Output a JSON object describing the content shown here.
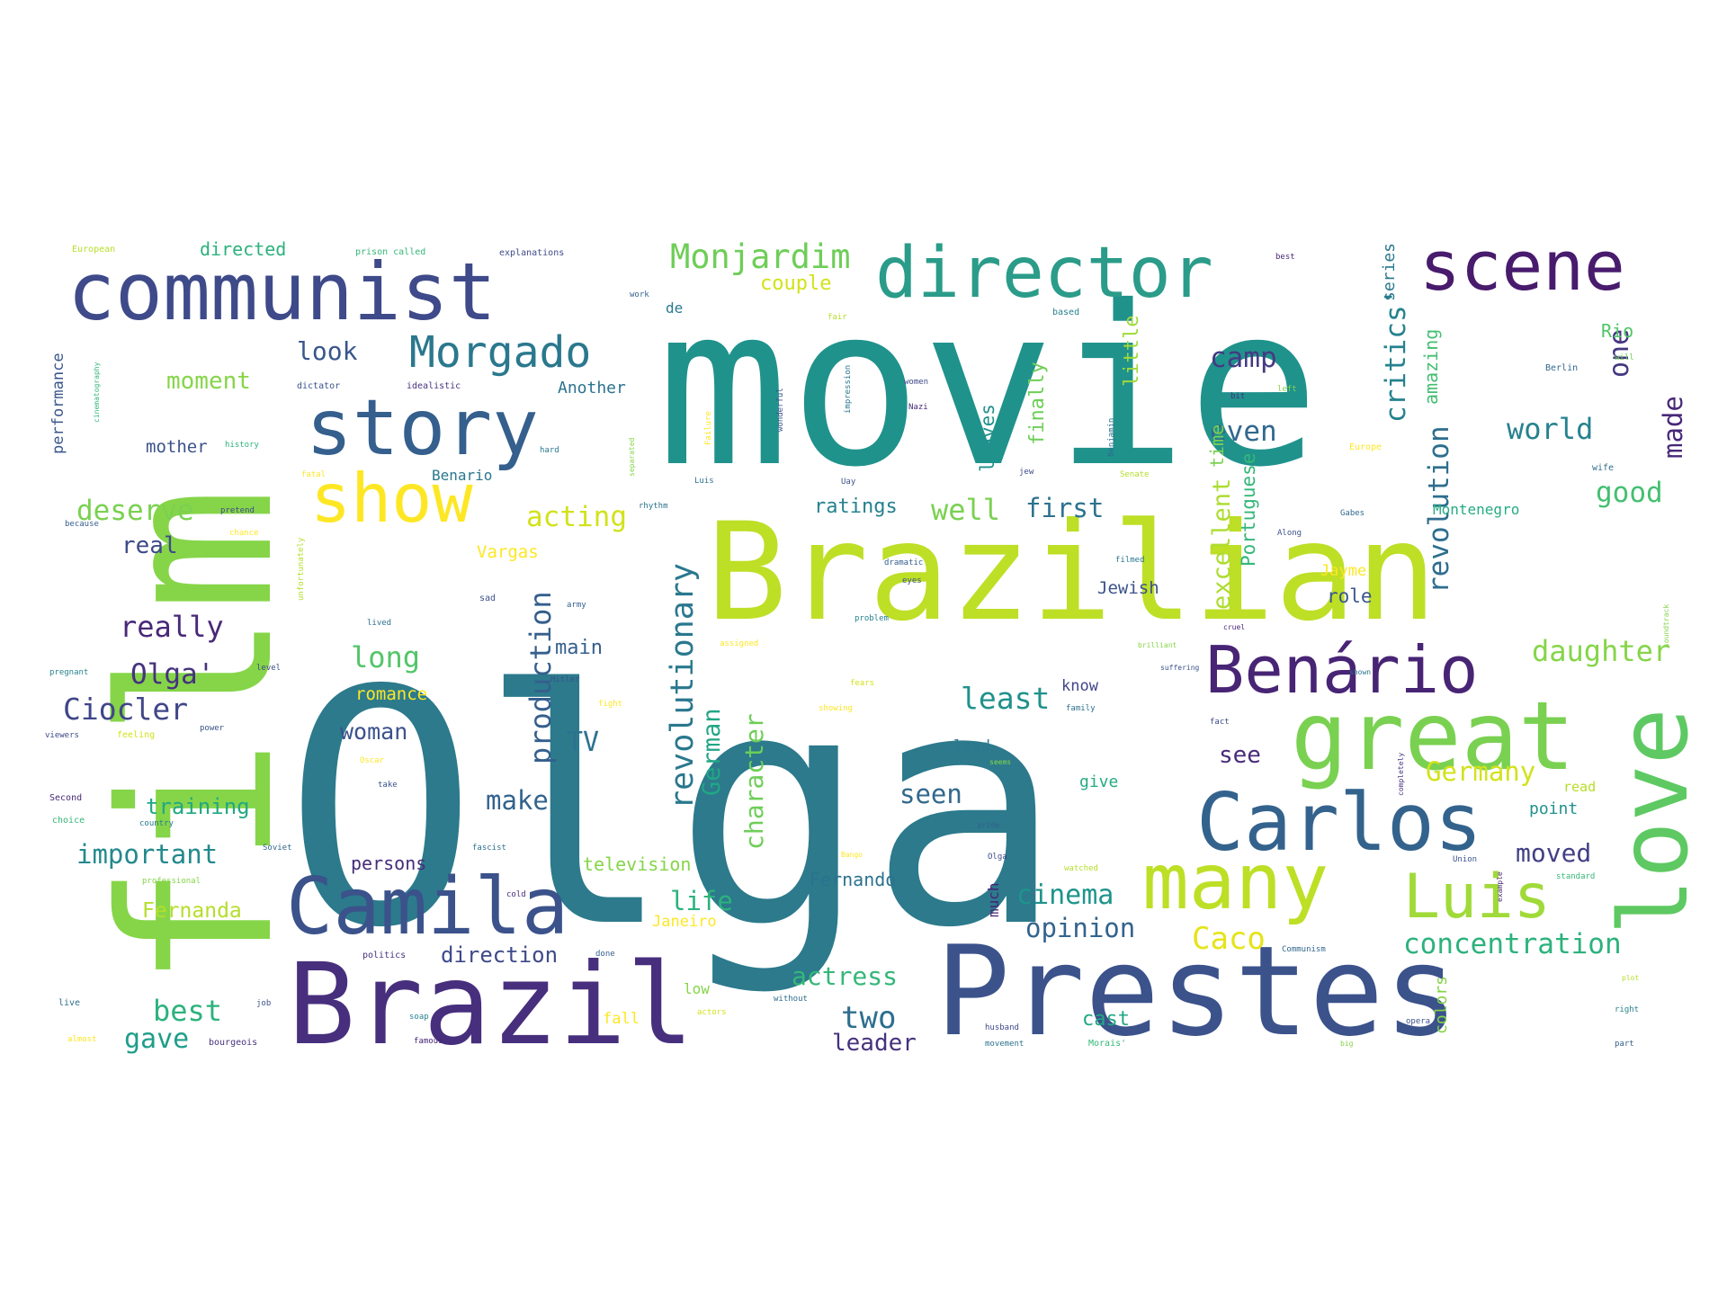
{
  "word_cloud": {
    "background": "#ffffff",
    "palette": [
      "#440154",
      "#482878",
      "#3e4989",
      "#31688e",
      "#26828e",
      "#1f9e89",
      "#35b779",
      "#6ece58",
      "#b5de2b",
      "#fde725"
    ],
    "words": [
      {
        "text": "Olga",
        "color": "#2c7a8c"
      },
      {
        "text": "movie",
        "color": "#20928c"
      },
      {
        "text": "film",
        "color": "#86d549"
      },
      {
        "text": "Brazilian",
        "color": "#bddf26"
      },
      {
        "text": "Prestes",
        "color": "#3b528b"
      },
      {
        "text": "Brazil",
        "color": "#472f7d"
      },
      {
        "text": "communist",
        "color": "#3e4a89"
      },
      {
        "text": "director",
        "color": "#2a9c89"
      },
      {
        "text": "scene",
        "color": "#481b6d"
      },
      {
        "text": "story",
        "color": "#355f8d"
      },
      {
        "text": "great",
        "color": "#7ad151"
      },
      {
        "text": "love",
        "color": "#5ec962"
      },
      {
        "text": "Camila",
        "color": "#3b528b"
      },
      {
        "text": "Carlos",
        "color": "#33638d"
      },
      {
        "text": "many",
        "color": "#bddf26"
      },
      {
        "text": "Benário",
        "color": "#482475"
      },
      {
        "text": "Luis",
        "color": "#a0da39"
      },
      {
        "text": "show",
        "color": "#fde725"
      },
      {
        "text": "Morgado",
        "color": "#2a788e"
      },
      {
        "text": "Monjardim",
        "color": "#6ece58"
      },
      {
        "text": "critics'",
        "color": "#26828e"
      },
      {
        "text": "revolutionary",
        "color": "#2a788e"
      },
      {
        "text": "production",
        "color": "#355f8d"
      },
      {
        "text": "revolution",
        "color": "#2e6e8e"
      },
      {
        "text": "excellent",
        "color": "#addc30"
      },
      {
        "text": "concentration",
        "color": "#2db27d"
      },
      {
        "text": "character",
        "color": "#6ece58"
      },
      {
        "text": "German",
        "color": "#21a685"
      },
      {
        "text": "daughter",
        "color": "#86d549"
      },
      {
        "text": "Germany",
        "color": "#d2e21b"
      },
      {
        "text": "important",
        "color": "#23898e"
      },
      {
        "text": "deserve",
        "color": "#7ad151"
      },
      {
        "text": "acting",
        "color": "#d2e21b"
      },
      {
        "text": "Ciocler",
        "color": "#404688"
      },
      {
        "text": "cinema",
        "color": "#1f948c"
      },
      {
        "text": "opinion",
        "color": "#33638d"
      },
      {
        "text": "actress",
        "color": "#35b779"
      },
      {
        "text": "Caco",
        "color": "#e5e419"
      },
      {
        "text": "least",
        "color": "#21918c"
      },
      {
        "text": "world",
        "color": "#26828e"
      },
      {
        "text": "good",
        "color": "#44bf70"
      },
      {
        "text": "really",
        "color": "#482878"
      },
      {
        "text": "Olga'",
        "color": "#46327e"
      },
      {
        "text": "long",
        "color": "#52c569"
      },
      {
        "text": "camp",
        "color": "#443a83"
      },
      {
        "text": "even",
        "color": "#31688e"
      },
      {
        "text": "made",
        "color": "#482878"
      },
      {
        "text": "one",
        "color": "#453781"
      },
      {
        "text": "look",
        "color": "#39568c"
      },
      {
        "text": "well",
        "color": "#7ad151"
      },
      {
        "text": "first",
        "color": "#2c728e"
      },
      {
        "text": "moment",
        "color": "#86d549"
      },
      {
        "text": "real",
        "color": "#3e4a89"
      },
      {
        "text": "seen",
        "color": "#31688e"
      },
      {
        "text": "make",
        "color": "#33638d"
      },
      {
        "text": "life",
        "color": "#2db27d"
      },
      {
        "text": "moved",
        "color": "#423f85"
      },
      {
        "text": "best",
        "color": "#2db27d"
      },
      {
        "text": "two",
        "color": "#2e6e8e"
      },
      {
        "text": "gave",
        "color": "#1f9e89"
      },
      {
        "text": "see",
        "color": "#472c7a"
      },
      {
        "text": "TV",
        "color": "#2c728e"
      },
      {
        "text": "woman",
        "color": "#3b528b"
      },
      {
        "text": "training",
        "color": "#22a884"
      },
      {
        "text": "leader",
        "color": "#46327e"
      },
      {
        "text": "Fernanda",
        "color": "#b5de2b"
      },
      {
        "text": "direction",
        "color": "#3e4a89"
      },
      {
        "text": "couple",
        "color": "#d2e21b"
      },
      {
        "text": "ratings",
        "color": "#26828e"
      },
      {
        "text": "role",
        "color": "#39568c"
      },
      {
        "text": "main",
        "color": "#355f8d"
      },
      {
        "text": "Jewish",
        "color": "#3b528b"
      },
      {
        "text": "leaves",
        "color": "#21918c"
      },
      {
        "text": "finally",
        "color": "#6ece58"
      },
      {
        "text": "little",
        "color": "#a0da39"
      },
      {
        "text": "time",
        "color": "#7ad151"
      },
      {
        "text": "Portuguese",
        "color": "#35b779"
      },
      {
        "text": "amazing",
        "color": "#44bf70"
      },
      {
        "text": "series",
        "color": "#2a788e"
      },
      {
        "text": "Rio",
        "color": "#52c569"
      },
      {
        "text": "Montenegro",
        "color": "#25ab82"
      },
      {
        "text": "cast",
        "color": "#22a884"
      },
      {
        "text": "Vargas",
        "color": "#fde725"
      },
      {
        "text": "Jayme",
        "color": "#fde725"
      },
      {
        "text": "Fernando",
        "color": "#2c728e"
      },
      {
        "text": "television",
        "color": "#86d549"
      },
      {
        "text": "persons",
        "color": "#472c7a"
      },
      {
        "text": "Another",
        "color": "#2c728e"
      },
      {
        "text": "mother",
        "color": "#3b528b"
      },
      {
        "text": "directed",
        "color": "#2db27d"
      },
      {
        "text": "performance",
        "color": "#39568c"
      },
      {
        "text": "romance",
        "color": "#fde725"
      },
      {
        "text": "Janeiro",
        "color": "#fde725"
      },
      {
        "text": "colors",
        "color": "#86d549"
      },
      {
        "text": "much",
        "color": "#482475"
      },
      {
        "text": "give",
        "color": "#25ab82"
      },
      {
        "text": "know",
        "color": "#404688"
      },
      {
        "text": "lead",
        "color": "#2a788e"
      },
      {
        "text": "fall",
        "color": "#fde725"
      },
      {
        "text": "low",
        "color": "#86d549"
      },
      {
        "text": "point",
        "color": "#21918c"
      },
      {
        "text": "read",
        "color": "#b5de2b"
      },
      {
        "text": "Benario",
        "color": "#2a788e"
      },
      {
        "text": "European",
        "color": "#b5de2b"
      },
      {
        "text": "prison called",
        "color": "#35b779"
      },
      {
        "text": "explanations",
        "color": "#3e4a89"
      },
      {
        "text": "work",
        "color": "#33638d"
      },
      {
        "text": "best",
        "color": "#482878"
      },
      {
        "text": "de",
        "color": "#2a788e"
      },
      {
        "text": "Berlin",
        "color": "#31688e"
      },
      {
        "text": "will",
        "color": "#6ece58"
      },
      {
        "text": "wife",
        "color": "#2e6e8e"
      },
      {
        "text": "Europe",
        "color": "#fde725"
      },
      {
        "text": "dictator",
        "color": "#3b528b"
      },
      {
        "text": "idealistic",
        "color": "#46327e"
      },
      {
        "text": "history",
        "color": "#2db27d"
      },
      {
        "text": "pretend",
        "color": "#3e4a89"
      },
      {
        "text": "chance",
        "color": "#fde725"
      },
      {
        "text": "because",
        "color": "#355f8d"
      },
      {
        "text": "pregnant",
        "color": "#26828e"
      },
      {
        "text": "Second",
        "color": "#482878"
      },
      {
        "text": "choice",
        "color": "#35b779"
      },
      {
        "text": "country",
        "color": "#2a788e"
      },
      {
        "text": "viewers",
        "color": "#3e4a89"
      },
      {
        "text": "feeling",
        "color": "#d2e21b"
      },
      {
        "text": "power",
        "color": "#3b528b"
      },
      {
        "text": "professional",
        "color": "#86d549"
      },
      {
        "text": "politics",
        "color": "#46327e"
      },
      {
        "text": "soap",
        "color": "#26828e"
      },
      {
        "text": "famous",
        "color": "#482475"
      },
      {
        "text": "live",
        "color": "#2e6e8e"
      },
      {
        "text": "almost",
        "color": "#fde725"
      },
      {
        "text": "job",
        "color": "#3b528b"
      },
      {
        "text": "bourgeois",
        "color": "#46327e"
      },
      {
        "text": "fascist",
        "color": "#2c728e"
      },
      {
        "text": "Soviet",
        "color": "#31688e"
      },
      {
        "text": "Oscar",
        "color": "#fde725"
      },
      {
        "text": "take",
        "color": "#3b528b"
      },
      {
        "text": "cold",
        "color": "#472c7a"
      },
      {
        "text": "done",
        "color": "#355f8d"
      },
      {
        "text": "Communism",
        "color": "#31688e"
      },
      {
        "text": "without",
        "color": "#2e6e8e"
      },
      {
        "text": "actors",
        "color": "#d2e21b"
      },
      {
        "text": "husband",
        "color": "#3e4a89"
      },
      {
        "text": "movement",
        "color": "#2c728e"
      },
      {
        "text": "Morais'",
        "color": "#35b779"
      },
      {
        "text": "opera",
        "color": "#3b528b"
      },
      {
        "text": "big",
        "color": "#86d549"
      },
      {
        "text": "right",
        "color": "#26828e"
      },
      {
        "text": "part",
        "color": "#355f8d"
      },
      {
        "text": "plot",
        "color": "#b5de2b"
      },
      {
        "text": "standard",
        "color": "#35b779"
      },
      {
        "text": "example",
        "color": "#482878"
      },
      {
        "text": "Union",
        "color": "#3b528b"
      },
      {
        "text": "watched",
        "color": "#b5de2b"
      },
      {
        "text": "Olga",
        "color": "#3e4a89"
      },
      {
        "text": "Gabes",
        "color": "#31688e"
      },
      {
        "text": "filmed",
        "color": "#2a788e"
      },
      {
        "text": "Along",
        "color": "#3b528b"
      },
      {
        "text": "soundtrack",
        "color": "#86d549"
      },
      {
        "text": "fact",
        "color": "#3e4a89"
      },
      {
        "text": "completely",
        "color": "#46327e"
      },
      {
        "text": "seems",
        "color": "#86d549"
      },
      {
        "text": "family",
        "color": "#2c728e"
      },
      {
        "text": "fears",
        "color": "#d2e21b"
      },
      {
        "text": "showing",
        "color": "#fde725"
      },
      {
        "text": "fight",
        "color": "#fde725"
      },
      {
        "text": "Hitler",
        "color": "#3b528b"
      },
      {
        "text": "army",
        "color": "#355f8d"
      },
      {
        "text": "lived",
        "color": "#2c728e"
      },
      {
        "text": "sad",
        "color": "#3b528b"
      },
      {
        "text": "level",
        "color": "#3e4a89"
      },
      {
        "text": "assigned",
        "color": "#fde725"
      },
      {
        "text": "problem",
        "color": "#26828e"
      },
      {
        "text": "eyes",
        "color": "#3b528b"
      },
      {
        "text": "dramatic",
        "color": "#355f8d"
      },
      {
        "text": "rhythm",
        "color": "#2c728e"
      },
      {
        "text": "Nazi",
        "color": "#482878"
      },
      {
        "text": "women",
        "color": "#3e4a89"
      },
      {
        "text": "bit",
        "color": "#46327e"
      },
      {
        "text": "left",
        "color": "#86d549"
      },
      {
        "text": "Benjamin",
        "color": "#2e6e8e"
      },
      {
        "text": "Senate",
        "color": "#b5de2b"
      },
      {
        "text": "based",
        "color": "#26828e"
      },
      {
        "text": "fair",
        "color": "#b5de2b"
      },
      {
        "text": "impression",
        "color": "#2a788e"
      },
      {
        "text": "wonderful",
        "color": "#3b528b"
      },
      {
        "text": "Failure",
        "color": "#fde725"
      },
      {
        "text": "Luis",
        "color": "#2c728e"
      },
      {
        "text": "Uay",
        "color": "#3b528b"
      },
      {
        "text": "jew",
        "color": "#3e4a89"
      },
      {
        "text": "hard",
        "color": "#2a788e"
      },
      {
        "text": "separated",
        "color": "#86d549"
      },
      {
        "text": "fatal",
        "color": "#fde725"
      },
      {
        "text": "unfortunately",
        "color": "#b5de2b"
      },
      {
        "text": "cinematography",
        "color": "#35b779"
      },
      {
        "text": "Bango",
        "color": "#fde725"
      },
      {
        "text": "cruel",
        "color": "#482878"
      },
      {
        "text": "pride",
        "color": "#355f8d"
      },
      {
        "text": "brilliant",
        "color": "#86d549"
      },
      {
        "text": "suffering",
        "color": "#3b528b"
      },
      {
        "text": "shown",
        "color": "#2c728e"
      }
    ]
  }
}
